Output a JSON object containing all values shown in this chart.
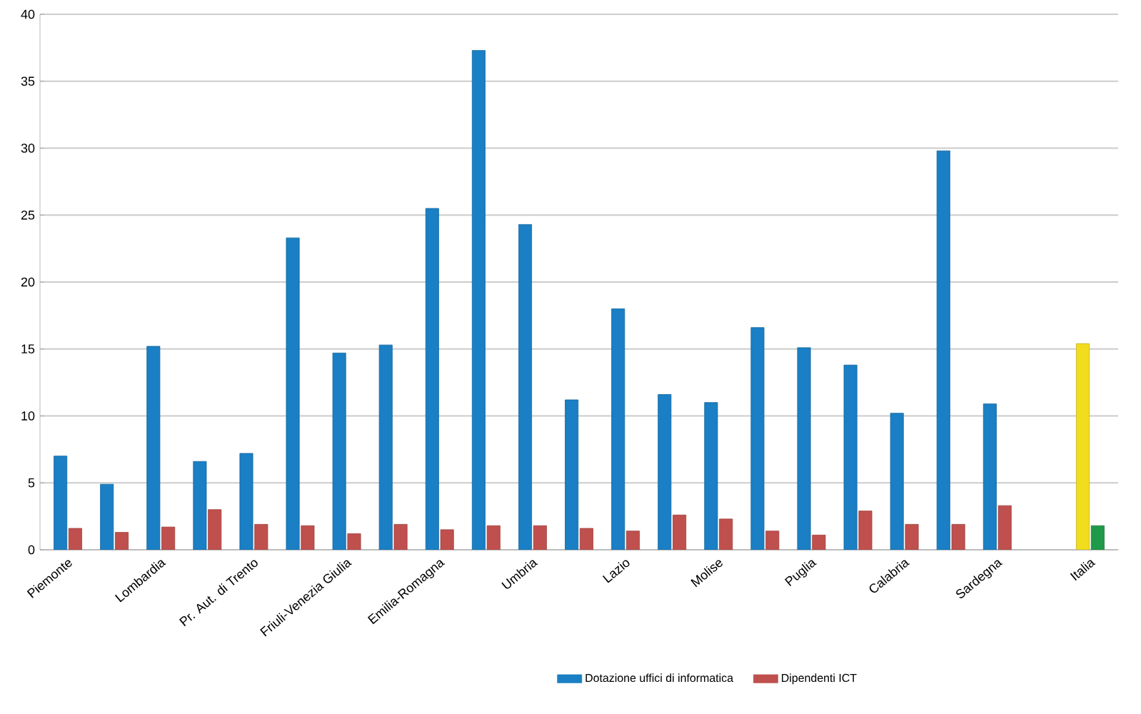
{
  "chart_data": {
    "type": "bar",
    "categories": [
      "Piemonte",
      null,
      "Lombardia",
      null,
      "Pr. Aut. di Trento",
      null,
      "Friuli-Venezia Giulia",
      null,
      "Emilia-Romagna",
      null,
      "Umbria",
      null,
      "Lazio",
      null,
      "Molise",
      null,
      "Puglia",
      null,
      "Calabria",
      null,
      "Sardegna",
      null,
      "Italia"
    ],
    "series": [
      {
        "name": "Dotazione uffici di informatica",
        "color": "#1a7fc4",
        "colors": [
          "#1a7fc4",
          "#1a7fc4",
          "#1a7fc4",
          "#1a7fc4",
          "#1a7fc4",
          "#1a7fc4",
          "#1a7fc4",
          "#1a7fc4",
          "#1a7fc4",
          "#1a7fc4",
          "#1a7fc4",
          "#1a7fc4",
          "#1a7fc4",
          "#1a7fc4",
          "#1a7fc4",
          "#1a7fc4",
          "#1a7fc4",
          "#1a7fc4",
          "#1a7fc4",
          "#1a7fc4",
          "#1a7fc4",
          "#1a7fc4",
          "#f2dc1e"
        ],
        "values": [
          7.0,
          4.9,
          15.2,
          6.6,
          7.2,
          23.3,
          14.7,
          15.3,
          25.5,
          37.3,
          24.3,
          11.2,
          18.0,
          11.6,
          11.0,
          16.6,
          15.1,
          13.8,
          10.2,
          29.8,
          10.9,
          null,
          15.4
        ]
      },
      {
        "name": "Dipendenti ICT",
        "color": "#c0504d",
        "colors": [
          "#c0504d",
          "#c0504d",
          "#c0504d",
          "#c0504d",
          "#c0504d",
          "#c0504d",
          "#c0504d",
          "#c0504d",
          "#c0504d",
          "#c0504d",
          "#c0504d",
          "#c0504d",
          "#c0504d",
          "#c0504d",
          "#c0504d",
          "#c0504d",
          "#c0504d",
          "#c0504d",
          "#c0504d",
          "#c0504d",
          "#c0504d",
          "#c0504d",
          "#1f9a4a"
        ],
        "values": [
          1.6,
          1.3,
          1.7,
          3.0,
          1.9,
          1.8,
          1.2,
          1.9,
          1.5,
          1.8,
          1.8,
          1.6,
          1.4,
          2.6,
          2.3,
          1.4,
          1.1,
          2.9,
          1.9,
          1.9,
          3.3,
          null,
          1.8
        ]
      }
    ],
    "ylim": [
      0,
      40
    ],
    "yticks": [
      0,
      5,
      10,
      15,
      20,
      25,
      30,
      35,
      40
    ],
    "grid": "y",
    "legend": "bottom"
  }
}
